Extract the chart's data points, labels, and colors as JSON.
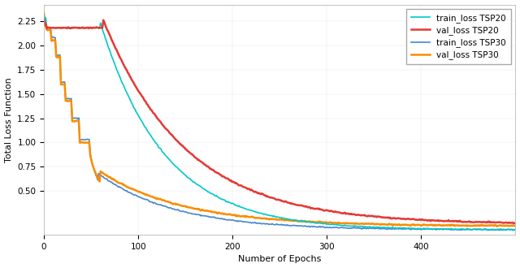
{
  "title": "",
  "xlabel": "Number of Epochs",
  "ylabel": "Total Loss Function",
  "xlim": [
    0,
    500
  ],
  "ylim": [
    0.05,
    2.42
  ],
  "yticks": [
    0.5,
    0.75,
    1.0,
    1.25,
    1.5,
    1.75,
    2.0,
    2.25
  ],
  "xticks": [
    0,
    100,
    200,
    300,
    400
  ],
  "legend_labels": [
    "train_loss TSP20",
    "val_loss TSP20",
    "train_loss TSP30",
    "val_loss TSP30"
  ],
  "colors": [
    "#00c8c8",
    "#e53935",
    "#4488cc",
    "#fb8c00"
  ],
  "linewidths": [
    1.2,
    1.8,
    1.2,
    1.8
  ],
  "background_color": "#ffffff"
}
